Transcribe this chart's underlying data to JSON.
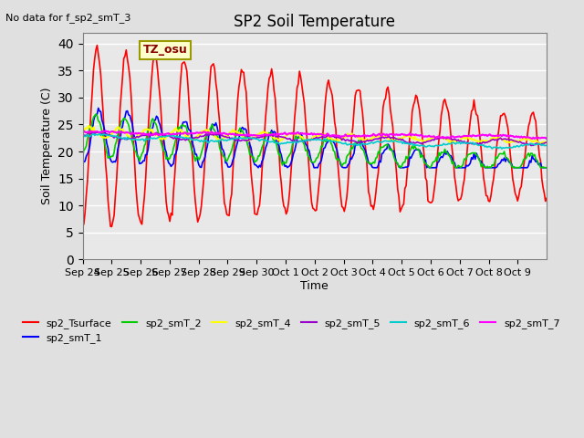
{
  "title": "SP2 Soil Temperature",
  "subtitle": "No data for f_sp2_smT_3",
  "xlabel": "Time",
  "ylabel": "Soil Temperature (C)",
  "tz_label": "TZ_osu",
  "ylim": [
    0,
    42
  ],
  "yticks": [
    0,
    5,
    10,
    15,
    20,
    25,
    30,
    35,
    40
  ],
  "x_tick_labels": [
    "Sep 24",
    "Sep 25",
    "Sep 26",
    "Sep 27",
    "Sep 28",
    "Sep 29",
    "Sep 30",
    "Oct 1",
    "Oct 2",
    "Oct 3",
    "Oct 4",
    "Oct 5",
    "Oct 6",
    "Oct 7",
    "Oct 8",
    "Oct 9"
  ],
  "series_colors": {
    "sp2_Tsurface": "#FF0000",
    "sp2_smT_1": "#0000FF",
    "sp2_smT_2": "#00CC00",
    "sp2_smT_4": "#FFFF00",
    "sp2_smT_5": "#9900CC",
    "sp2_smT_6": "#00CCCC",
    "sp2_smT_7": "#FF00FF"
  },
  "legend_entries": [
    "sp2_Tsurface",
    "sp2_smT_1",
    "sp2_smT_2",
    "sp2_smT_4",
    "sp2_smT_5",
    "sp2_smT_6",
    "sp2_smT_7"
  ]
}
